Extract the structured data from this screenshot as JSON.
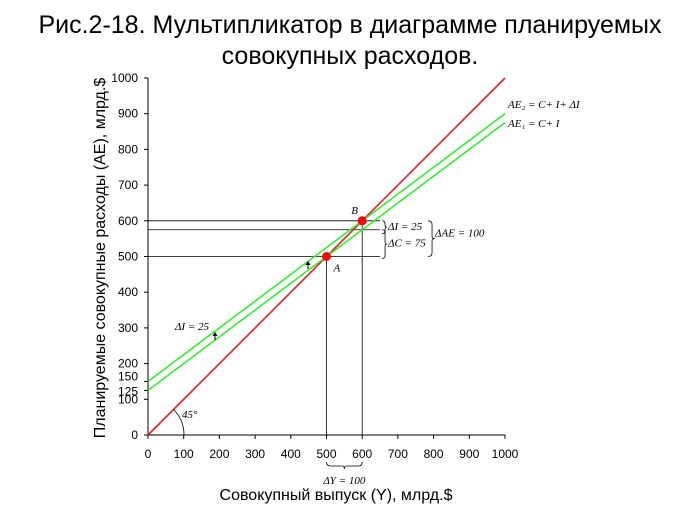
{
  "title_line1": "Рис.2-18. Мультипликатор в диаграмме планируемых",
  "title_line2": "совокупных расходов.",
  "chart_data": {
    "type": "line",
    "xlabel": "Совокупный выпуск (Y), млрд.$",
    "ylabel": "Планируемые совокупные расходы (AE), млрд.$",
    "xlim": [
      0,
      1000
    ],
    "ylim": [
      0,
      1000
    ],
    "x_ticks": [
      0,
      100,
      200,
      300,
      400,
      500,
      600,
      700,
      800,
      900,
      1000
    ],
    "y_ticks": [
      0,
      100,
      200,
      300,
      400,
      500,
      600,
      700,
      800,
      900,
      1000
    ],
    "y_extra_ticks": [
      125,
      150
    ],
    "grid": false,
    "series": [
      {
        "name": "45°",
        "color": "#e02020",
        "points": [
          [
            0,
            0
          ],
          [
            1000,
            1000
          ]
        ]
      },
      {
        "name": "AE1 = C+ I",
        "color": "#33ee33",
        "points": [
          [
            0,
            125
          ],
          [
            1000,
            875
          ]
        ]
      },
      {
        "name": "AE2 = C+ I+ ΔI",
        "color": "#33ee33",
        "points": [
          [
            0,
            150
          ],
          [
            1000,
            900
          ]
        ]
      }
    ],
    "points": [
      {
        "label": "A",
        "x": 500,
        "y": 500,
        "color": "#ff0000"
      },
      {
        "label": "B",
        "x": 600,
        "y": 600,
        "color": "#ff0000"
      }
    ],
    "annotations": {
      "angle": "45°",
      "ae2_label": "AE₂ = C+ I+ ΔI",
      "ae1_label": "AE₁ = C+ I",
      "delta_i_right": "ΔI = 25",
      "delta_c": "ΔC = 75",
      "delta_ae": "ΔAE = 100",
      "delta_i_left": "ΔI = 25",
      "delta_y": "ΔY = 100"
    }
  }
}
